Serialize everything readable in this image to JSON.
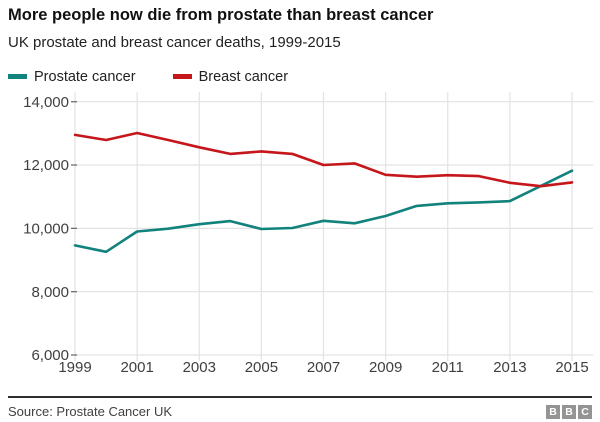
{
  "header": {
    "title": "More people now die from prostate than breast cancer",
    "subtitle": "UK prostate and breast cancer deaths, 1999-2015"
  },
  "chart_data": {
    "type": "line",
    "x": [
      1999,
      2000,
      2001,
      2002,
      2003,
      2004,
      2005,
      2006,
      2007,
      2008,
      2009,
      2010,
      2011,
      2012,
      2013,
      2014,
      2015
    ],
    "series": [
      {
        "name": "Prostate cancer",
        "color": "#12827d",
        "values": [
          9460,
          9260,
          9900,
          9990,
          10130,
          10230,
          9980,
          10010,
          10240,
          10160,
          10390,
          10710,
          10790,
          10820,
          10860,
          11340,
          11820
        ]
      },
      {
        "name": "Breast cancer",
        "color": "#c5161c",
        "values": [
          12950,
          12790,
          13010,
          12790,
          12560,
          12350,
          12430,
          12350,
          12000,
          12050,
          11690,
          11630,
          11680,
          11650,
          11440,
          11330,
          11450
        ]
      }
    ],
    "title": "More people now die from prostate than breast cancer",
    "xlabel": "",
    "ylabel": "",
    "ylim": [
      6000,
      14000
    ],
    "yticks": [
      6000,
      8000,
      10000,
      12000,
      14000
    ],
    "ytick_labels": [
      "6,000",
      "8,000",
      "10,000",
      "12,000",
      "14,000"
    ],
    "xticks": [
      1999,
      2001,
      2003,
      2005,
      2007,
      2009,
      2011,
      2013,
      2015
    ],
    "grid": true,
    "legend_position": "top-left"
  },
  "footer": {
    "source": "Source: Prostate Cancer UK",
    "logo": [
      "B",
      "B",
      "C"
    ]
  },
  "colors": {
    "grid": "#e3e3e3",
    "tick": "#6f6f6f",
    "axis_text": "#404040"
  }
}
